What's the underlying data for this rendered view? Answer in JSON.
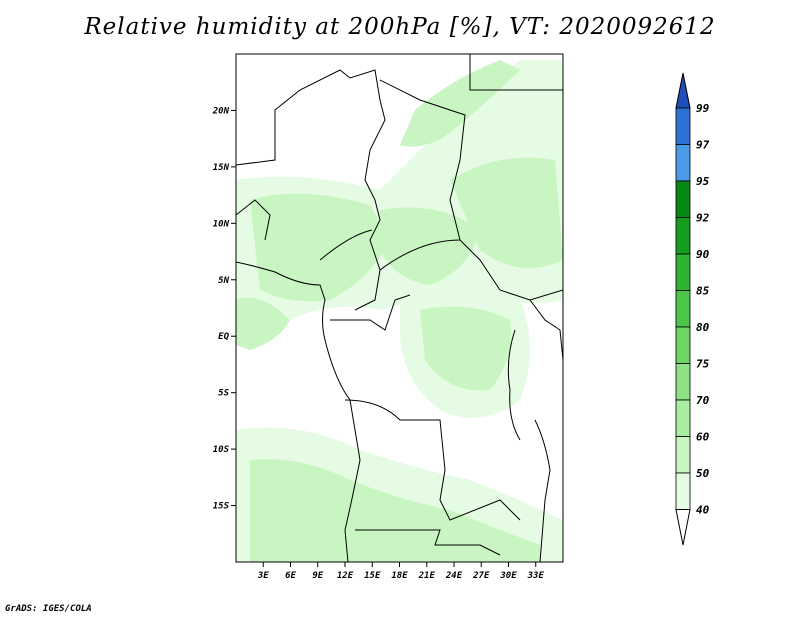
{
  "title": "Relative humidity at 200hPa [%], VT: 2020092612",
  "credit": "GrADS: IGES/COLA",
  "map": {
    "lon_range": [
      0,
      36
    ],
    "lat_range": [
      -20,
      25
    ],
    "x_ticks": [
      "3E",
      "6E",
      "9E",
      "12E",
      "15E",
      "18E",
      "21E",
      "24E",
      "27E",
      "30E",
      "33E"
    ],
    "y_ticks": [
      "20N",
      "15N",
      "10N",
      "5N",
      "EQ",
      "5S",
      "10S",
      "15S"
    ]
  },
  "colorbar": {
    "levels": [
      "40",
      "50",
      "60",
      "70",
      "75",
      "80",
      "85",
      "90",
      "92",
      "95",
      "97",
      "99"
    ],
    "colors": [
      "#ffffff",
      "#e6fbe3",
      "#c9f5c2",
      "#a8eda0",
      "#8ee185",
      "#6cd664",
      "#4cc64a",
      "#30b233",
      "#169c1f",
      "#0a8814",
      "#4a9ae8",
      "#2e72d6",
      "#1f4fb8"
    ]
  }
}
